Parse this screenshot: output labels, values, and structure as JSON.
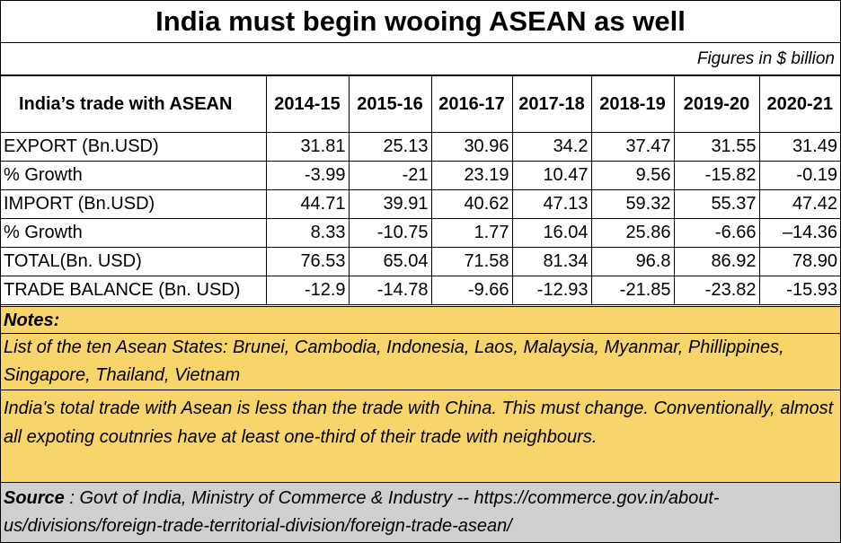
{
  "title": "India must begin wooing ASEAN as well",
  "figures_note": "Figures in $ billion",
  "table": {
    "row_header": "India’s trade with ASEAN",
    "years": [
      "2014-15",
      "2015-16",
      "2016-17",
      "2017-18",
      "2018-19",
      "2019-20",
      "2020-21"
    ],
    "rows": [
      {
        "label": "EXPORT (Bn.USD)",
        "values": [
          "31.81",
          "25.13",
          "30.96",
          "34.2",
          "37.47",
          "31.55",
          "31.49"
        ]
      },
      {
        "label": "% Growth",
        "values": [
          "-3.99",
          "-21",
          "23.19",
          "10.47",
          "9.56",
          "-15.82",
          "-0.19"
        ]
      },
      {
        "label": "IMPORT (Bn.USD)",
        "values": [
          "44.71",
          "39.91",
          "40.62",
          "47.13",
          "59.32",
          "55.37",
          "47.42"
        ]
      },
      {
        "label": "% Growth",
        "values": [
          "8.33",
          "-10.75",
          "1.77",
          "16.04",
          "25.86",
          "-6.66",
          "–14.36"
        ]
      },
      {
        "label": "TOTAL(Bn. USD)",
        "values": [
          "76.53",
          "65.04",
          "71.58",
          "81.34",
          "96.8",
          "86.92",
          "78.90"
        ]
      },
      {
        "label": "TRADE BALANCE (Bn. USD)",
        "values": [
          "-12.9",
          "-14.78",
          "-9.66",
          "-12.93",
          "-21.85",
          "-23.82",
          "-15.93"
        ]
      }
    ]
  },
  "notes": {
    "heading": "Notes:",
    "asean_list": "List of the ten Asean States: Brunei, Cambodia, Indonesia, Laos, Malaysia, Myanmar, Phillippines, Singapore, Thailand, Vietnam",
    "comment": "India's total trade with Asean is less than the trade with China.  This must change. Conventionally, almost all expoting coutnries have at least one-third of their trade with neighbours."
  },
  "source": {
    "label": "Source",
    "text": " : Govt of India, Ministry of Commerce & Industry -- https://commerce.gov.in/about-us/divisions/foreign-trade-territorial-division/foreign-trade-asean/"
  },
  "colors": {
    "notes_background": "#f7d56a",
    "source_background": "#d0d0d0"
  }
}
